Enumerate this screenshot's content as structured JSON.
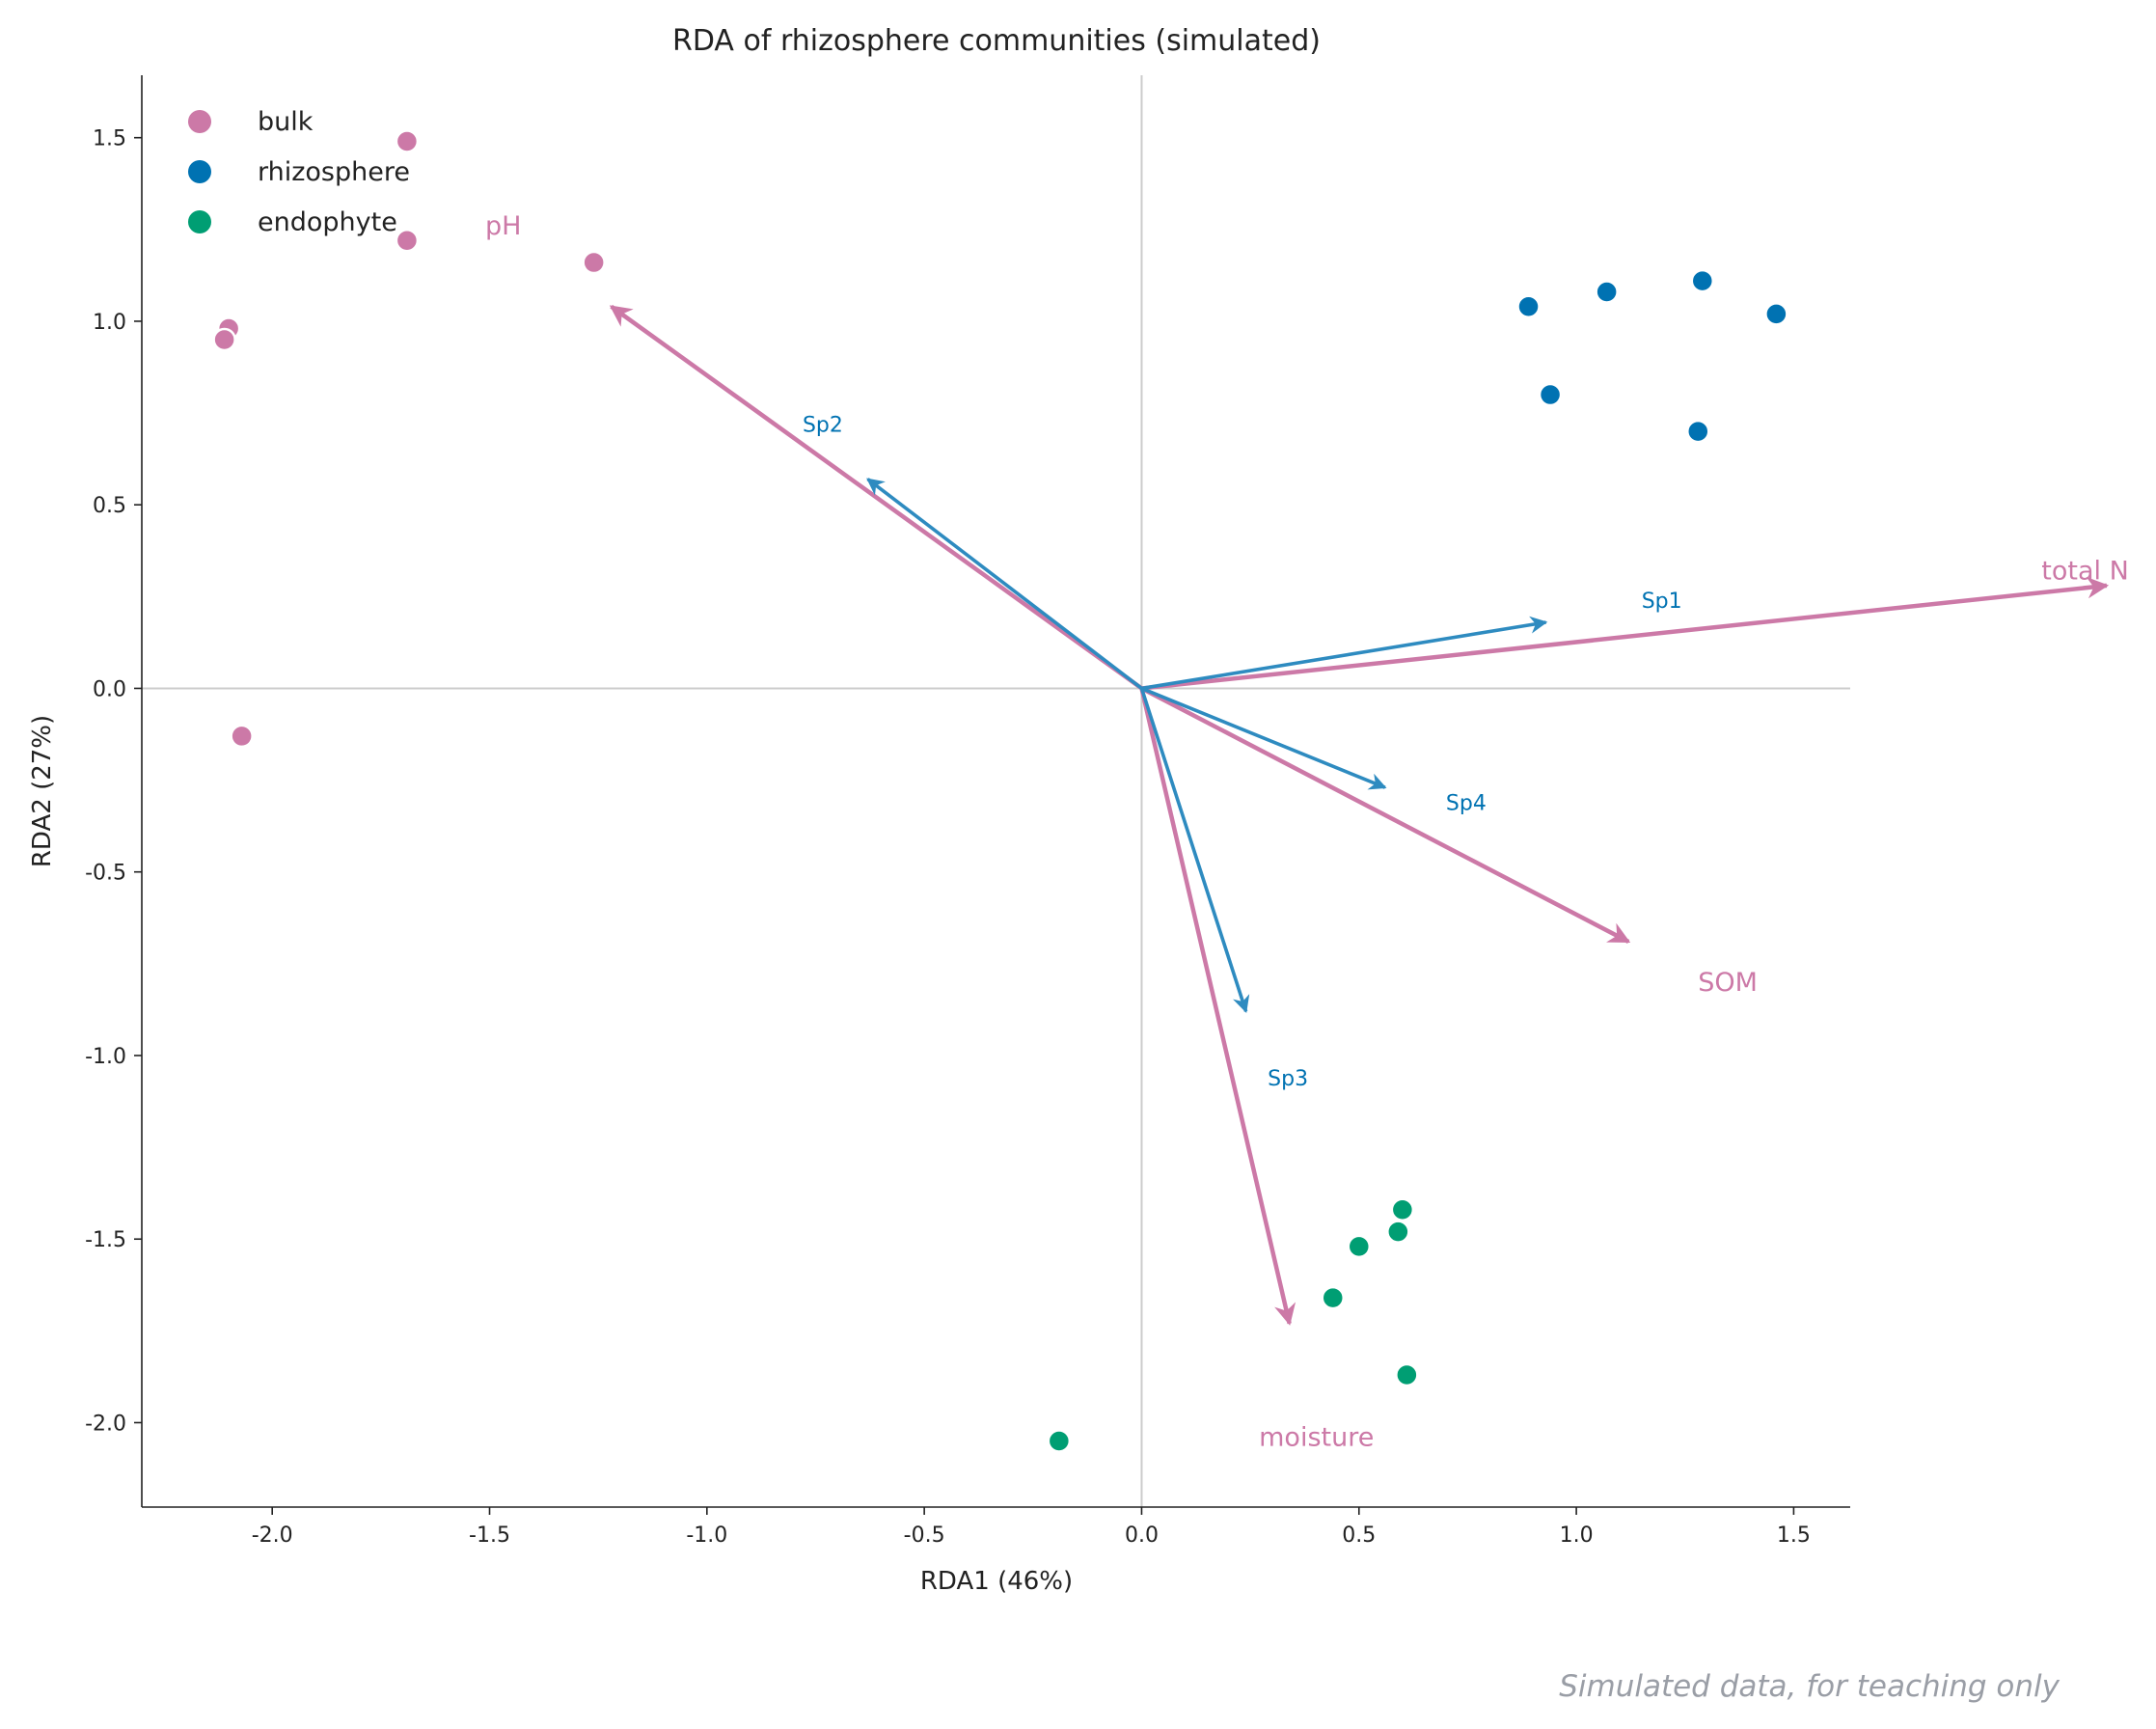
{
  "colors": {
    "bulk": "#cc79a7",
    "rhizosphere": "#0072b2",
    "endophyte": "#009e73",
    "env_arrow": "#cc79a7",
    "species_arrow": "#2e8bc0",
    "species_label": "#0072b2",
    "zero_line": "#cccccc",
    "axis": "#222222",
    "footer": "#9a9ea6"
  },
  "chart_data": {
    "type": "scatter",
    "subtype": "rda-biplot",
    "title": "RDA of rhizosphere communities (simulated)",
    "xlabel": "RDA1 (46%)",
    "ylabel": "RDA2 (27%)",
    "xlim": [
      -2.3,
      1.63
    ],
    "ylim": [
      -2.23,
      1.67
    ],
    "xticks": [
      -2.0,
      -1.5,
      -1.0,
      -0.5,
      0.0,
      0.5,
      1.0,
      1.5
    ],
    "xtick_labels": [
      "-2.0",
      "-1.5",
      "-1.0",
      "-0.5",
      "0.0",
      "0.5",
      "1.0",
      "1.5"
    ],
    "yticks": [
      -2.0,
      -1.5,
      -1.0,
      -0.5,
      0.0,
      0.5,
      1.0,
      1.5
    ],
    "ytick_labels": [
      "-2.0",
      "-1.5",
      "-1.0",
      "-0.5",
      "0.0",
      "0.5",
      "1.0",
      "1.5"
    ],
    "grid": false,
    "zero_lines": true,
    "legend_position": "top-left",
    "series": [
      {
        "name": "bulk",
        "points": [
          [
            -1.69,
            1.49
          ],
          [
            -1.69,
            1.22
          ],
          [
            -1.26,
            1.16
          ],
          [
            -2.1,
            0.98
          ],
          [
            -2.11,
            0.95
          ],
          [
            -2.07,
            -0.13
          ]
        ]
      },
      {
        "name": "rhizosphere",
        "points": [
          [
            0.89,
            1.04
          ],
          [
            1.07,
            1.08
          ],
          [
            1.29,
            1.11
          ],
          [
            1.46,
            1.02
          ],
          [
            0.94,
            0.8
          ],
          [
            1.28,
            0.7
          ]
        ]
      },
      {
        "name": "endophyte",
        "points": [
          [
            0.6,
            -1.42
          ],
          [
            0.59,
            -1.48
          ],
          [
            0.5,
            -1.52
          ],
          [
            0.44,
            -1.66
          ],
          [
            0.61,
            -1.87
          ],
          [
            -0.19,
            -2.05
          ]
        ]
      }
    ],
    "env_vectors": [
      {
        "label": "pH",
        "x": -1.22,
        "y": 1.04,
        "label_x": -1.51,
        "label_y": 1.26
      },
      {
        "label": "total N",
        "x": 2.22,
        "y": 0.28,
        "label_x": 2.07,
        "label_y": 0.32
      },
      {
        "label": "SOM",
        "x": 1.12,
        "y": -0.69,
        "label_x": 1.28,
        "label_y": -0.8
      },
      {
        "label": "moisture",
        "x": 0.34,
        "y": -1.73,
        "label_x": 0.27,
        "label_y": -2.04
      }
    ],
    "species_vectors": [
      {
        "label": "Sp1",
        "x": 0.93,
        "y": 0.18,
        "label_x": 1.15,
        "label_y": 0.24
      },
      {
        "label": "Sp2",
        "x": -0.63,
        "y": 0.57,
        "label_x": -0.78,
        "label_y": 0.72
      },
      {
        "label": "Sp3",
        "x": 0.24,
        "y": -0.88,
        "label_x": 0.29,
        "label_y": -1.06
      },
      {
        "label": "Sp4",
        "x": 0.56,
        "y": -0.27,
        "label_x": 0.7,
        "label_y": -0.31
      }
    ]
  },
  "footer": "Simulated data, for teaching only"
}
